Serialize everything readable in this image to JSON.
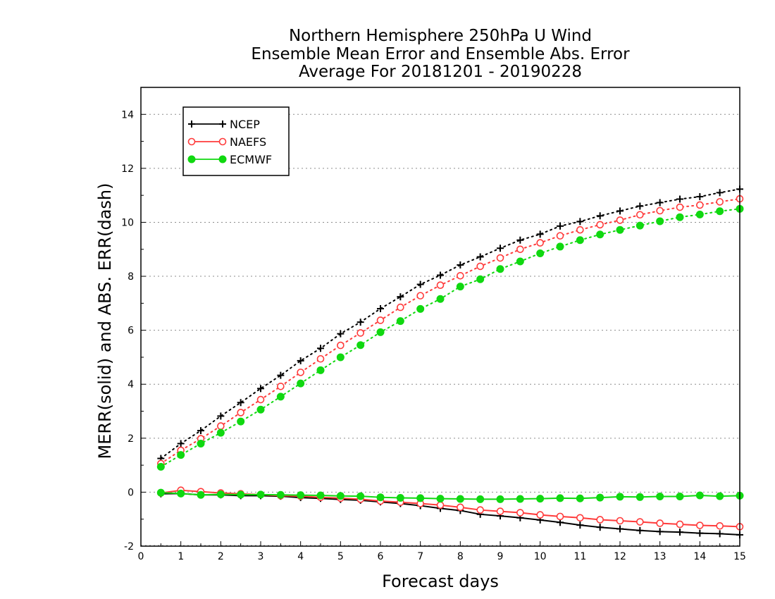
{
  "chart_data": {
    "type": "line",
    "title": [
      "Northern Hemisphere 250hPa U Wind",
      "Ensemble Mean Error and Ensemble Abs. Error",
      "Average For 20181201 - 20190228"
    ],
    "xlabel": "Forecast days",
    "ylabel": "MERR(solid) and ABS. ERR(dash)",
    "xlim": [
      0,
      15
    ],
    "ylim": [
      -2,
      15
    ],
    "xticks": [
      "0",
      "1",
      "2",
      "3",
      "4",
      "5",
      "6",
      "7",
      "8",
      "9",
      "10",
      "11",
      "12",
      "13",
      "14",
      "15"
    ],
    "yticks": [
      "-2",
      "0",
      "2",
      "4",
      "6",
      "8",
      "10",
      "12",
      "14"
    ],
    "grid": true,
    "legend_position": "top-left",
    "x": [
      0.5,
      1.0,
      1.5,
      2.0,
      2.5,
      3.0,
      3.5,
      4.0,
      4.5,
      5.0,
      5.5,
      6.0,
      6.5,
      7.0,
      7.5,
      8.0,
      8.5,
      9.0,
      9.5,
      10.0,
      10.5,
      11.0,
      11.5,
      12.0,
      12.5,
      13.0,
      13.5,
      14.0,
      14.5,
      15.0
    ],
    "series": [
      {
        "name": "NCEP",
        "color": "#000000",
        "marker": "plus",
        "merr": [
          -0.06,
          -0.05,
          -0.1,
          -0.1,
          -0.13,
          -0.13,
          -0.15,
          -0.2,
          -0.23,
          -0.27,
          -0.3,
          -0.36,
          -0.42,
          -0.5,
          -0.6,
          -0.68,
          -0.82,
          -0.88,
          -0.95,
          -1.03,
          -1.12,
          -1.22,
          -1.3,
          -1.36,
          -1.42,
          -1.46,
          -1.48,
          -1.52,
          -1.54,
          -1.58
        ],
        "abs_err": [
          1.25,
          1.8,
          2.28,
          2.82,
          3.32,
          3.84,
          4.33,
          4.87,
          5.33,
          5.87,
          6.3,
          6.8,
          7.24,
          7.7,
          8.04,
          8.42,
          8.72,
          9.04,
          9.34,
          9.56,
          9.86,
          10.03,
          10.24,
          10.42,
          10.6,
          10.73,
          10.86,
          10.95,
          11.1,
          11.23
        ]
      },
      {
        "name": "NAEFS",
        "color": "#ff3b3b",
        "marker": "open-circle",
        "merr": [
          -0.03,
          0.07,
          0.02,
          -0.03,
          -0.06,
          -0.09,
          -0.13,
          -0.15,
          -0.19,
          -0.22,
          -0.26,
          -0.33,
          -0.37,
          -0.42,
          -0.48,
          -0.56,
          -0.66,
          -0.71,
          -0.76,
          -0.84,
          -0.9,
          -0.95,
          -1.02,
          -1.06,
          -1.1,
          -1.15,
          -1.19,
          -1.23,
          -1.25,
          -1.28
        ],
        "abs_err": [
          1.06,
          1.55,
          1.98,
          2.45,
          2.95,
          3.43,
          3.92,
          4.44,
          4.94,
          5.44,
          5.9,
          6.37,
          6.85,
          7.28,
          7.67,
          8.02,
          8.37,
          8.68,
          9.0,
          9.24,
          9.5,
          9.72,
          9.91,
          10.08,
          10.28,
          10.43,
          10.56,
          10.64,
          10.76,
          10.87
        ]
      },
      {
        "name": "ECMWF",
        "color": "#10d810",
        "marker": "filled-circle",
        "merr": [
          -0.02,
          -0.05,
          -0.1,
          -0.08,
          -0.09,
          -0.09,
          -0.1,
          -0.11,
          -0.12,
          -0.14,
          -0.15,
          -0.19,
          -0.21,
          -0.22,
          -0.24,
          -0.25,
          -0.26,
          -0.26,
          -0.25,
          -0.24,
          -0.22,
          -0.23,
          -0.2,
          -0.17,
          -0.18,
          -0.16,
          -0.16,
          -0.12,
          -0.15,
          -0.13
        ],
        "abs_err": [
          0.94,
          1.38,
          1.8,
          2.2,
          2.62,
          3.06,
          3.54,
          4.03,
          4.52,
          5.0,
          5.45,
          5.93,
          6.34,
          6.79,
          7.16,
          7.62,
          7.89,
          8.27,
          8.55,
          8.85,
          9.1,
          9.34,
          9.55,
          9.72,
          9.88,
          10.04,
          10.19,
          10.29,
          10.41,
          10.5
        ]
      }
    ]
  }
}
